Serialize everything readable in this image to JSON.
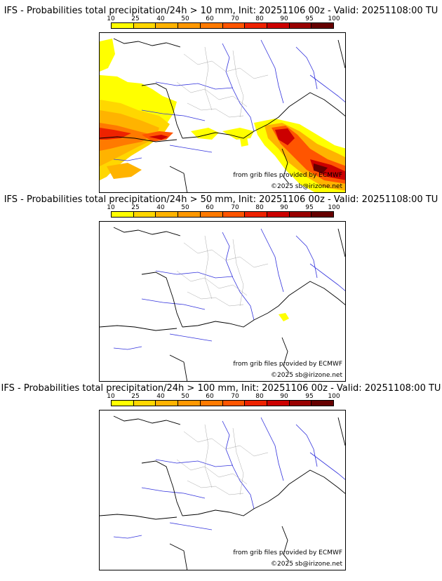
{
  "colorbar": {
    "ticks": [
      "10",
      "25",
      "40",
      "50",
      "60",
      "70",
      "80",
      "90",
      "95",
      "100"
    ],
    "colors": [
      "#ffff00",
      "#ffd700",
      "#ffb300",
      "#ff9800",
      "#ff7a00",
      "#ff5500",
      "#ee2200",
      "#cc0000",
      "#990000",
      "#660000"
    ]
  },
  "panels": [
    {
      "title": "IFS - Probabilities total precipitation/24h > 10 mm, Init: 20251106 00z - Valid: 20251108:00 TU",
      "credit_source": "from grib files provided by ECMWF",
      "credit_copyright": "©2025 sb@irizone.net"
    },
    {
      "title": "IFS - Probabilities total precipitation/24h > 50 mm, Init: 20251106 00z - Valid: 20251108:00 TU",
      "credit_source": "from grib files provided by ECMWF",
      "credit_copyright": "©2025 sb@irizone.net"
    },
    {
      "title": "IFS - Probabilities total precipitation/24h > 100 mm, Init: 20251106 00z - Valid: 20251108:00 TU",
      "credit_source": "from grib files provided by ECMWF",
      "credit_copyright": "©2025 sb@irizone.net"
    }
  ]
}
